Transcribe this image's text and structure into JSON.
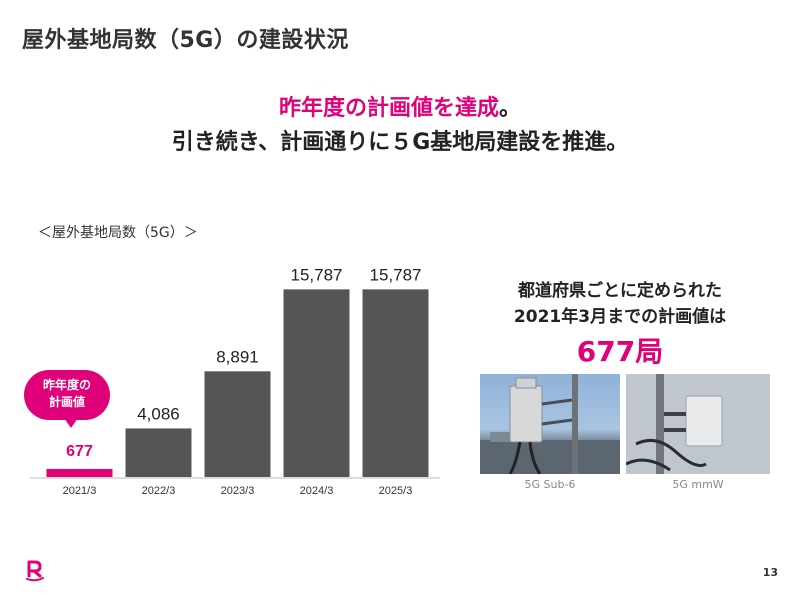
{
  "slide": {
    "title": "屋外基地局数（5G）の建設状況",
    "headline_line1_accent": "昨年度の計画値を達成",
    "headline_line1_end": "。",
    "headline_line2": "引き続き、計画通りに５G基地局建設を推進。",
    "page_number": "13"
  },
  "chart_caption": "＜屋外基地局数（5G）＞",
  "callout": {
    "line1": "昨年度の",
    "line2": "計画値"
  },
  "plan_box": {
    "line1": "都道府県ごとに定められた",
    "line2": "2021年3月までの計画値は",
    "value": "677局"
  },
  "photos": [
    {
      "label": "5G Sub-6"
    },
    {
      "label": "5G mmW"
    }
  ],
  "colors": {
    "accent": "#e0007a",
    "bar": "#555555",
    "text": "#222222"
  },
  "chart_data": {
    "type": "bar",
    "categories": [
      "2021/3",
      "2022/3",
      "2023/3",
      "2024/3",
      "2025/3"
    ],
    "values": [
      677,
      4086,
      8891,
      15787,
      15787
    ],
    "value_labels": [
      "677",
      "4,086",
      "8,891",
      "15,787",
      "15,787"
    ],
    "highlight_index": 0,
    "ylim": [
      0,
      17500
    ],
    "grid": false
  }
}
